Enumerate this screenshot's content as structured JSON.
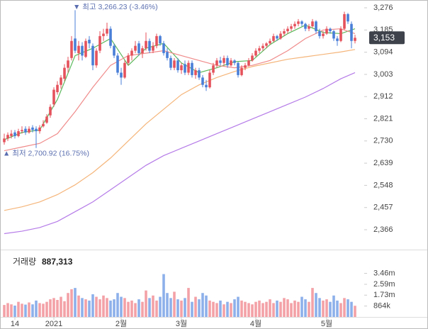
{
  "chart_data": {
    "type": "candlestick",
    "categories": [
      null,
      null,
      null,
      "14",
      null,
      null,
      null,
      null,
      null,
      null,
      null,
      null,
      null,
      null,
      "2021",
      null,
      null,
      null,
      null,
      null,
      null,
      null,
      null,
      null,
      null,
      null,
      null,
      null,
      null,
      null,
      null,
      null,
      null,
      "2월",
      null,
      null,
      null,
      null,
      null,
      null,
      null,
      null,
      null,
      null,
      null,
      null,
      null,
      null,
      null,
      null,
      "3월",
      null,
      null,
      null,
      null,
      null,
      null,
      null,
      null,
      null,
      null,
      null,
      null,
      null,
      null,
      null,
      null,
      null,
      null,
      null,
      null,
      "4월",
      null,
      null,
      null,
      null,
      null,
      null,
      null,
      null,
      null,
      null,
      null,
      null,
      null,
      null,
      null,
      null,
      null,
      null,
      null,
      "5월",
      null,
      null,
      null,
      null,
      null,
      null,
      null,
      null
    ],
    "ohlc": [
      [
        2725,
        2760,
        2715,
        2740
      ],
      [
        2740,
        2765,
        2730,
        2755
      ],
      [
        2750,
        2775,
        2740,
        2760
      ],
      [
        2765,
        2775,
        2740,
        2750
      ],
      [
        2750,
        2780,
        2745,
        2770
      ],
      [
        2770,
        2790,
        2760,
        2775
      ],
      [
        2780,
        2790,
        2755,
        2765
      ],
      [
        2765,
        2790,
        2760,
        2780
      ],
      [
        2785,
        2795,
        2765,
        2775
      ],
      [
        2780,
        2790,
        2700.92,
        2770
      ],
      [
        2770,
        2795,
        2760,
        2785
      ],
      [
        2790,
        2815,
        2785,
        2800
      ],
      [
        2805,
        2840,
        2800,
        2830
      ],
      [
        2835,
        2880,
        2825,
        2870
      ],
      [
        2880,
        2950,
        2870,
        2940
      ],
      [
        2930,
        2975,
        2920,
        2960
      ],
      [
        2960,
        3000,
        2945,
        2990
      ],
      [
        2985,
        3045,
        2975,
        3030
      ],
      [
        3030,
        3075,
        3010,
        3060
      ],
      [
        3070,
        3160,
        3060,
        3140
      ],
      [
        3150,
        3266.23,
        3090,
        3100
      ],
      [
        3090,
        3140,
        3060,
        3120
      ],
      [
        3120,
        3135,
        3060,
        3080
      ],
      [
        3075,
        3150,
        3070,
        3140
      ],
      [
        3145,
        3160,
        3110,
        3130
      ],
      [
        3120,
        3130,
        3020,
        3040
      ],
      [
        3040,
        3110,
        3030,
        3100
      ],
      [
        3100,
        3180,
        3090,
        3160
      ],
      [
        3160,
        3190,
        3140,
        3170
      ],
      [
        3170,
        3215,
        3160,
        3190
      ],
      [
        3190,
        3200,
        3110,
        3120
      ],
      [
        3120,
        3130,
        3070,
        3080
      ],
      [
        3080,
        3090,
        3000,
        3010
      ],
      [
        3010,
        3030,
        2960,
        2990
      ],
      [
        2990,
        3060,
        2985,
        3050
      ],
      [
        3050,
        3090,
        3040,
        3080
      ],
      [
        3080,
        3110,
        3060,
        3100
      ],
      [
        3100,
        3140,
        3090,
        3120
      ],
      [
        3130,
        3140,
        3080,
        3090
      ],
      [
        3090,
        3120,
        3070,
        3110
      ],
      [
        3110,
        3175,
        3100,
        3140
      ],
      [
        3140,
        3150,
        3090,
        3100
      ],
      [
        3100,
        3135,
        3090,
        3120
      ],
      [
        3120,
        3170,
        3110,
        3160
      ],
      [
        3160,
        3165,
        3120,
        3130
      ],
      [
        3130,
        3140,
        3080,
        3090
      ],
      [
        3095,
        3110,
        3060,
        3070
      ],
      [
        3070,
        3080,
        3020,
        3030
      ],
      [
        3030,
        3070,
        3020,
        3060
      ],
      [
        3060,
        3070,
        3010,
        3020
      ],
      [
        3020,
        3050,
        3005,
        3040
      ],
      [
        3045,
        3060,
        3000,
        3010
      ],
      [
        3010,
        3060,
        3000,
        3050
      ],
      [
        3050,
        3060,
        2990,
        3000
      ],
      [
        3000,
        3030,
        2985,
        3020
      ],
      [
        3020,
        3030,
        2980,
        2990
      ],
      [
        2990,
        3000,
        2950,
        2960
      ],
      [
        2960,
        2980,
        2935,
        2950
      ],
      [
        2950,
        3020,
        2945,
        3010
      ],
      [
        3010,
        3050,
        3000,
        3040
      ],
      [
        3040,
        3070,
        3030,
        3060
      ],
      [
        3060,
        3075,
        3040,
        3050
      ],
      [
        3050,
        3080,
        3040,
        3070
      ],
      [
        3070,
        3080,
        3030,
        3040
      ],
      [
        3040,
        3070,
        3035,
        3060
      ],
      [
        3060,
        3065,
        3040,
        3050
      ],
      [
        3050,
        3055,
        2990,
        3000
      ],
      [
        3000,
        3040,
        2995,
        3030
      ],
      [
        3030,
        3050,
        3020,
        3040
      ],
      [
        3040,
        3070,
        3035,
        3060
      ],
      [
        3060,
        3090,
        3055,
        3080
      ],
      [
        3080,
        3110,
        3075,
        3100
      ],
      [
        3100,
        3120,
        3090,
        3110
      ],
      [
        3110,
        3130,
        3100,
        3120
      ],
      [
        3120,
        3135,
        3110,
        3130
      ],
      [
        3130,
        3150,
        3125,
        3140
      ],
      [
        3140,
        3170,
        3135,
        3160
      ],
      [
        3160,
        3165,
        3140,
        3150
      ],
      [
        3150,
        3180,
        3145,
        3170
      ],
      [
        3170,
        3190,
        3160,
        3180
      ],
      [
        3180,
        3200,
        3170,
        3190
      ],
      [
        3190,
        3210,
        3180,
        3200
      ],
      [
        3200,
        3220,
        3190,
        3210
      ],
      [
        3210,
        3230,
        3200,
        3220
      ],
      [
        3220,
        3225,
        3200,
        3210
      ],
      [
        3210,
        3215,
        3180,
        3190
      ],
      [
        3190,
        3210,
        3180,
        3200
      ],
      [
        3200,
        3230,
        3195,
        3220
      ],
      [
        3220,
        3225,
        3170,
        3180
      ],
      [
        3180,
        3190,
        3150,
        3160
      ],
      [
        3160,
        3180,
        3150,
        3170
      ],
      [
        3170,
        3200,
        3165,
        3190
      ],
      [
        3190,
        3195,
        3170,
        3180
      ],
      [
        3180,
        3185,
        3140,
        3150
      ],
      [
        3150,
        3160,
        3120,
        3140
      ],
      [
        3140,
        3200,
        3135,
        3190
      ],
      [
        3190,
        3260,
        3185,
        3250
      ],
      [
        3250,
        3255,
        3210,
        3220
      ],
      [
        3210,
        3220,
        3110,
        3140
      ],
      [
        3140,
        3165,
        3130,
        3153
      ]
    ],
    "up_color": "#e5525b",
    "down_color": "#4a7fd8",
    "volume": [
      950000,
      1100000,
      1000000,
      900000,
      1200000,
      1050000,
      980000,
      1150000,
      1000000,
      1300000,
      1100000,
      1050000,
      1200000,
      1400000,
      1500000,
      1350000,
      1600000,
      1250000,
      1900000,
      2200000,
      2300000,
      1700000,
      1500000,
      1400000,
      1300000,
      1800000,
      1600000,
      1400000,
      1700000,
      1500000,
      1300000,
      1400000,
      1900000,
      1600000,
      1500000,
      1200000,
      1300000,
      1100000,
      1400000,
      1200000,
      2100000,
      1500000,
      1700000,
      1300000,
      1600000,
      3400000,
      1900000,
      1500000,
      2000000,
      1400000,
      1300000,
      1500000,
      2300000,
      1200000,
      1600000,
      1400000,
      1900000,
      1700000,
      1300000,
      1200000,
      1100000,
      1300000,
      1000000,
      1200000,
      1100000,
      1400000,
      1600000,
      1300000,
      1200000,
      1100000,
      1000000,
      1200000,
      1300000,
      1100000,
      1200000,
      1400000,
      1100000,
      1300000,
      1200000,
      1500000,
      1400000,
      1100000,
      1300000,
      1200000,
      1600000,
      1400000,
      1200000,
      2300000,
      1900000,
      1500000,
      1300000,
      1400000,
      1200000,
      1700000,
      1300000,
      1100000,
      1500000,
      1400000,
      1200000,
      887313
    ],
    "volume_up_color": "#f3a1a7",
    "volume_down_color": "#8db0ea",
    "series": [
      {
        "color": "#5cb85c",
        "x": [
          0,
          5,
          10,
          15,
          20,
          25,
          30,
          35,
          40,
          45,
          50,
          55,
          60,
          65,
          70,
          75,
          80,
          85,
          90,
          95,
          99
        ],
        "values": [
          2735,
          2765,
          2775,
          2900,
          3080,
          3110,
          3150,
          3040,
          3110,
          3130,
          3050,
          3010,
          3030,
          3055,
          3060,
          3125,
          3170,
          3205,
          3175,
          3170,
          3190
        ]
      },
      {
        "color": "#f08a8a",
        "x": [
          0,
          5,
          10,
          15,
          20,
          25,
          30,
          35,
          40,
          45,
          50,
          55,
          60,
          65,
          70,
          75,
          80,
          85,
          90,
          95,
          99
        ],
        "values": [
          2690,
          2705,
          2720,
          2760,
          2850,
          2950,
          3040,
          3080,
          3090,
          3100,
          3080,
          3060,
          3040,
          3030,
          3040,
          3060,
          3100,
          3150,
          3185,
          3190,
          3170
        ]
      },
      {
        "color": "#f5b57a",
        "x": [
          0,
          5,
          10,
          15,
          20,
          25,
          30,
          35,
          40,
          45,
          50,
          55,
          60,
          65,
          70,
          75,
          80,
          85,
          90,
          95,
          99
        ],
        "values": [
          2445,
          2460,
          2480,
          2510,
          2550,
          2600,
          2660,
          2730,
          2800,
          2860,
          2920,
          2960,
          2990,
          3015,
          3035,
          3050,
          3065,
          3075,
          3085,
          3095,
          3105
        ]
      },
      {
        "color": "#b57be8",
        "x": [
          0,
          5,
          10,
          15,
          20,
          25,
          30,
          35,
          40,
          45,
          50,
          55,
          60,
          65,
          70,
          75,
          80,
          85,
          90,
          95,
          99
        ],
        "values": [
          2350,
          2360,
          2375,
          2400,
          2440,
          2480,
          2530,
          2580,
          2630,
          2670,
          2700,
          2730,
          2760,
          2790,
          2820,
          2850,
          2880,
          2910,
          2945,
          2985,
          3010
        ]
      }
    ],
    "ylim": [
      2330,
      3300
    ],
    "yticks": [
      {
        "value": 2366,
        "label": "2,366"
      },
      {
        "value": 2457,
        "label": "2,457"
      },
      {
        "value": 2548,
        "label": "2,548"
      },
      {
        "value": 2639,
        "label": "2,639"
      },
      {
        "value": 2730,
        "label": "2,730"
      },
      {
        "value": 2821,
        "label": "2,821"
      },
      {
        "value": 2912,
        "label": "2,912"
      },
      {
        "value": 3003,
        "label": "3,003"
      },
      {
        "value": 3094,
        "label": "3,094"
      },
      {
        "value": 3185,
        "label": "3,185"
      },
      {
        "value": 3276,
        "label": "3,276"
      }
    ],
    "volume_ylim": [
      0,
      3600000
    ],
    "volume_yticks": [
      {
        "value": 864000,
        "label": "864k"
      },
      {
        "value": 1730000,
        "label": "1.73m"
      },
      {
        "value": 2590000,
        "label": "2.59m"
      },
      {
        "value": 3460000,
        "label": "3.46m"
      }
    ],
    "high_annotation": "▼ 최고 3,266.23 (-3.46%)",
    "low_annotation": "▲ 최저 2,700.92 (16.75%)",
    "last_price_label": "3,153",
    "volume_title": "거래량",
    "volume_value_label": "887,313"
  }
}
